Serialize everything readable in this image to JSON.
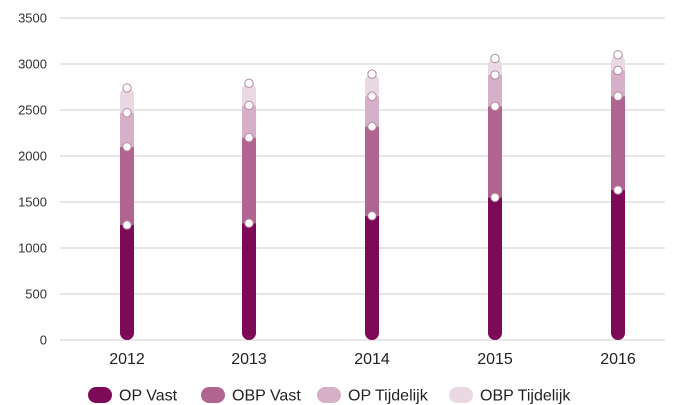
{
  "chart_data": {
    "type": "bar",
    "stacked": true,
    "categories": [
      "2012",
      "2013",
      "2014",
      "2015",
      "2016"
    ],
    "series": [
      {
        "name": "OP Vast",
        "color": "#7d0a56",
        "values": [
          1250,
          1270,
          1350,
          1550,
          1630
        ]
      },
      {
        "name": "OBP Vast",
        "color": "#b0648f",
        "values": [
          850,
          930,
          970,
          990,
          1020
        ]
      },
      {
        "name": "OP Tijdelijk",
        "color": "#d6b0c8",
        "values": [
          370,
          350,
          330,
          340,
          280
        ]
      },
      {
        "name": "OBP Tijdelijk",
        "color": "#ead8e3",
        "values": [
          270,
          240,
          240,
          180,
          170
        ]
      }
    ],
    "ylim": [
      0,
      3500
    ],
    "yticks": [
      0,
      500,
      1000,
      1500,
      2000,
      2500,
      3000,
      3500
    ],
    "grid": true,
    "legend_position": "bottom",
    "title": "",
    "xlabel": "",
    "ylabel": ""
  }
}
